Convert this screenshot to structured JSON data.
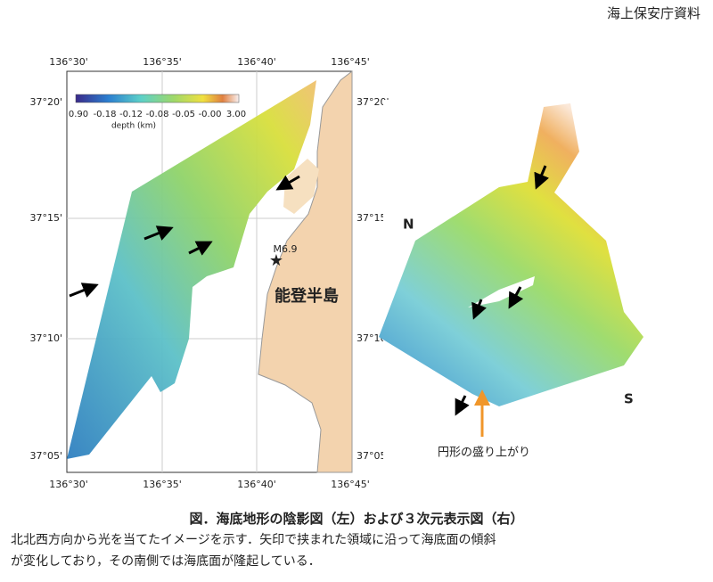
{
  "header": "海上保安庁資料",
  "left_map": {
    "lon_labels": [
      "136°30'",
      "136°35'",
      "136°40'",
      "136°45'"
    ],
    "lat_labels": [
      "37°20'",
      "37°15'",
      "37°10'",
      "37°05'"
    ],
    "colorbar_labels": [
      "0.90",
      "-0.18",
      "-0.12",
      "-0.08",
      "-0.05",
      "-0.00",
      "3.00"
    ],
    "colorbar_title": "depth (km)",
    "epicenter_label": "M6.9",
    "peninsula_label": "能登半島"
  },
  "right_view": {
    "north": "N",
    "south": "S",
    "annotation": "円形の盛り上がり"
  },
  "caption": {
    "title": "図．海底地形の陰影図（左）および３次元表示図（右）",
    "lines": [
      "北北西方向から光を当てたイメージを示す．矢印で挟まれた領域に沿って海底面の傾斜",
      "が変化しており，その南側では海底面が隆起している．"
    ]
  }
}
